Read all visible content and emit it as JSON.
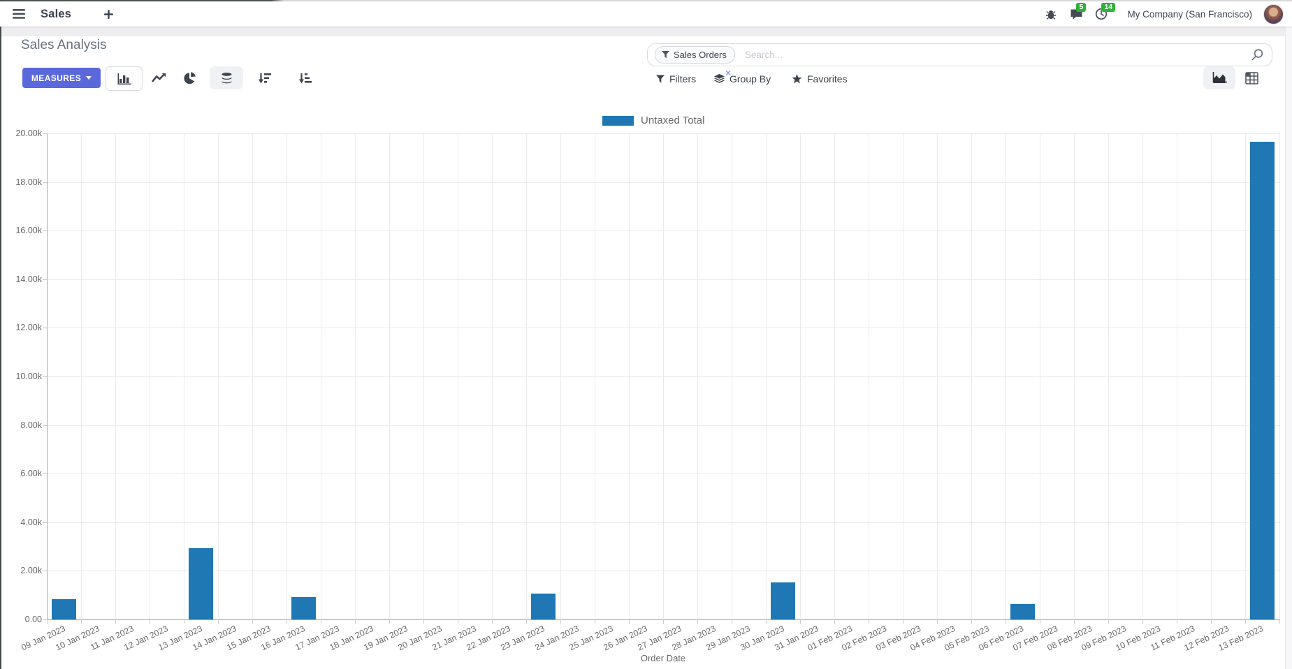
{
  "navbar": {
    "app_name": "Sales",
    "messages_count": "5",
    "activities_count": "14",
    "company": "My Company (San Francisco)",
    "icons": [
      "hamburger-icon",
      "plus-icon",
      "bug-icon",
      "chat-icon",
      "clock-icon",
      "user-avatar"
    ]
  },
  "control_panel": {
    "title": "Sales Analysis",
    "measures_label": "MEASURES",
    "search": {
      "facet_label": "Sales Orders",
      "facet_remove": "×",
      "placeholder": "Search..."
    },
    "filters_label": "Filters",
    "group_by_label": "Group By",
    "favorites_label": "Favorites",
    "view_modes": [
      "graph",
      "pivot"
    ],
    "chart_type_buttons": [
      "bar-chart",
      "line-chart",
      "pie-chart",
      "stacked",
      "sort-descending",
      "sort-ascending"
    ]
  },
  "colors": {
    "primary_button": "#5a68dc",
    "bar": "#1f77b4",
    "badge_green": "#30b13c"
  },
  "chart_data": {
    "type": "bar",
    "legend_position": "top",
    "grid": true,
    "xlabel": "Order Date",
    "ylabel": "",
    "ylim": [
      0,
      20000
    ],
    "y_ticks": [
      "0.00",
      "2.00k",
      "4.00k",
      "6.00k",
      "8.00k",
      "10.00k",
      "12.00k",
      "14.00k",
      "16.00k",
      "18.00k",
      "20.00k"
    ],
    "categories": [
      "09 Jan 2023",
      "10 Jan 2023",
      "11 Jan 2023",
      "12 Jan 2023",
      "13 Jan 2023",
      "14 Jan 2023",
      "15 Jan 2023",
      "16 Jan 2023",
      "17 Jan 2023",
      "18 Jan 2023",
      "19 Jan 2023",
      "20 Jan 2023",
      "21 Jan 2023",
      "22 Jan 2023",
      "23 Jan 2023",
      "24 Jan 2023",
      "25 Jan 2023",
      "26 Jan 2023",
      "27 Jan 2023",
      "28 Jan 2023",
      "29 Jan 2023",
      "30 Jan 2023",
      "31 Jan 2023",
      "01 Feb 2023",
      "02 Feb 2023",
      "03 Feb 2023",
      "04 Feb 2023",
      "05 Feb 2023",
      "06 Feb 2023",
      "07 Feb 2023",
      "08 Feb 2023",
      "09 Feb 2023",
      "10 Feb 2023",
      "11 Feb 2023",
      "12 Feb 2023",
      "13 Feb 2023"
    ],
    "series": [
      {
        "name": "Untaxed Total",
        "color": "#1f77b4",
        "values": [
          830,
          0,
          0,
          0,
          2930,
          0,
          0,
          915,
          0,
          0,
          0,
          0,
          0,
          0,
          1060,
          0,
          0,
          0,
          0,
          0,
          0,
          1520,
          0,
          0,
          0,
          0,
          0,
          0,
          630,
          0,
          0,
          0,
          0,
          0,
          0,
          19650
        ]
      }
    ]
  }
}
